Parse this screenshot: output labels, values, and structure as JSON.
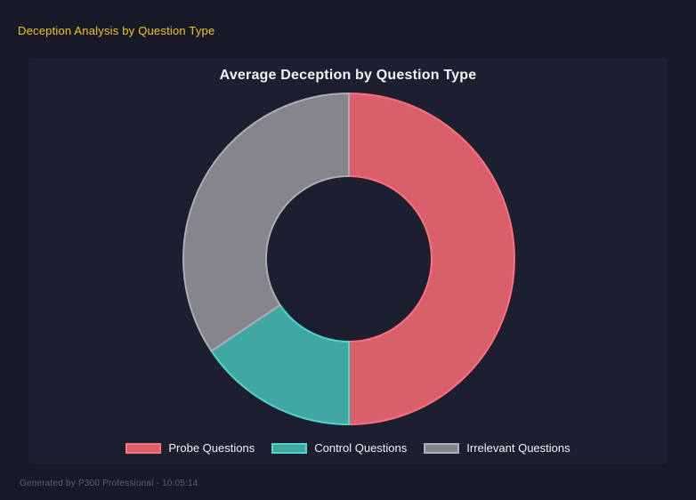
{
  "header": {
    "title": "Deception Analysis by Question Type",
    "color": "#f2c61f"
  },
  "footer": {
    "text": "Generated by P300 Professional - 10:05:14"
  },
  "theme": {
    "page_bg": "#171a26",
    "panel_bg": "#1c1f30",
    "title_color": "#f2f3f5",
    "legend_text_color": "#f0f0f2",
    "footer_color": "#5a5f72"
  },
  "chart_data": {
    "type": "pie",
    "subtype": "donut",
    "title": "Average Deception by Question Type",
    "start_angle_deg": 0,
    "direction": "clockwise",
    "inner_radius_ratio": 0.5,
    "legend_position": "bottom",
    "segments": [
      {
        "label": "Probe Questions",
        "percent": 50.0,
        "angle_deg": 180.0,
        "fill": "#d7606b",
        "border": "#ff6f7d"
      },
      {
        "label": "Control Questions",
        "percent": 15.6,
        "angle_deg": 56.2,
        "fill": "#41a7a2",
        "border": "#4fd6cc"
      },
      {
        "label": "Irrelevant Questions",
        "percent": 34.4,
        "angle_deg": 123.8,
        "fill": "#86858b",
        "border": "#aeadb3"
      }
    ]
  }
}
